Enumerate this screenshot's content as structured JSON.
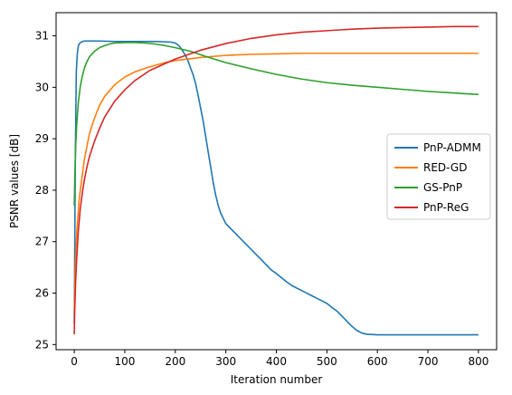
{
  "chart_data": {
    "type": "line",
    "title": "",
    "xlabel": "Iteration number",
    "ylabel": "PSNR values [dB]",
    "xlim": [
      -36,
      836
    ],
    "ylim": [
      24.9,
      31.45
    ],
    "xticks": [
      0,
      100,
      200,
      300,
      400,
      500,
      600,
      700,
      800
    ],
    "yticks": [
      25,
      26,
      27,
      28,
      29,
      30,
      31
    ],
    "grid": false,
    "legend_position": "center-right",
    "series": [
      {
        "name": "PnP-ADMM",
        "color": "#1f77b4",
        "x": [
          0,
          2,
          4,
          6,
          8,
          10,
          14,
          20,
          30,
          50,
          80,
          120,
          160,
          190,
          200,
          208,
          215,
          220,
          225,
          230,
          235,
          240,
          245,
          250,
          255,
          260,
          265,
          270,
          275,
          280,
          285,
          290,
          295,
          300,
          305,
          310,
          315,
          320,
          330,
          340,
          350,
          360,
          370,
          380,
          390,
          400,
          410,
          420,
          430,
          440,
          450,
          460,
          470,
          480,
          490,
          500,
          510,
          520,
          530,
          540,
          550,
          560,
          570,
          580,
          600,
          650,
          700,
          750,
          800
        ],
        "y": [
          25.4,
          28.5,
          30.3,
          30.65,
          30.8,
          30.85,
          30.88,
          30.9,
          30.9,
          30.9,
          30.89,
          30.89,
          30.89,
          30.88,
          30.86,
          30.8,
          30.7,
          30.62,
          30.52,
          30.38,
          30.25,
          30.08,
          29.85,
          29.6,
          29.35,
          29.05,
          28.75,
          28.45,
          28.15,
          27.9,
          27.7,
          27.55,
          27.45,
          27.35,
          27.3,
          27.25,
          27.2,
          27.15,
          27.05,
          26.95,
          26.85,
          26.75,
          26.65,
          26.55,
          26.45,
          26.38,
          26.3,
          26.22,
          26.15,
          26.1,
          26.05,
          26.0,
          25.95,
          25.9,
          25.85,
          25.8,
          25.72,
          25.65,
          25.55,
          25.45,
          25.35,
          25.27,
          25.22,
          25.2,
          25.19,
          25.19,
          25.19,
          25.19,
          25.19
        ]
      },
      {
        "name": "RED-GD",
        "color": "#ff7f0e",
        "x": [
          0,
          2,
          5,
          10,
          20,
          30,
          40,
          50,
          60,
          80,
          100,
          120,
          150,
          180,
          200,
          250,
          300,
          350,
          400,
          450,
          500,
          600,
          700,
          800
        ],
        "y": [
          25.6,
          26.5,
          27.2,
          27.85,
          28.6,
          29.1,
          29.4,
          29.65,
          29.82,
          30.05,
          30.2,
          30.3,
          30.4,
          30.48,
          30.52,
          30.58,
          30.62,
          30.64,
          30.65,
          30.66,
          30.66,
          30.66,
          30.66,
          30.66
        ]
      },
      {
        "name": "GS-PnP",
        "color": "#2ca02c",
        "x": [
          0,
          1,
          2,
          3,
          5,
          8,
          12,
          16,
          20,
          25,
          30,
          40,
          50,
          60,
          70,
          80,
          100,
          120,
          140,
          160,
          180,
          200,
          230,
          260,
          300,
          350,
          400,
          450,
          500,
          550,
          600,
          650,
          700,
          750,
          800
        ],
        "y": [
          27.7,
          28.2,
          28.6,
          28.9,
          29.3,
          29.7,
          30.02,
          30.22,
          30.37,
          30.5,
          30.59,
          30.7,
          30.77,
          30.81,
          30.84,
          30.86,
          30.87,
          30.87,
          30.86,
          30.84,
          30.81,
          30.77,
          30.7,
          30.6,
          30.48,
          30.36,
          30.25,
          30.16,
          30.09,
          30.04,
          30.0,
          29.96,
          29.92,
          29.89,
          29.86
        ]
      },
      {
        "name": "PnP-ReG",
        "color": "#d62728",
        "x": [
          0,
          1,
          2,
          3,
          5,
          8,
          12,
          16,
          20,
          25,
          30,
          40,
          50,
          60,
          80,
          100,
          120,
          150,
          200,
          250,
          300,
          350,
          400,
          450,
          500,
          550,
          600,
          650,
          700,
          750,
          800
        ],
        "y": [
          25.2,
          25.7,
          26.0,
          26.3,
          26.7,
          27.2,
          27.65,
          27.95,
          28.2,
          28.45,
          28.65,
          28.95,
          29.2,
          29.42,
          29.73,
          29.95,
          30.13,
          30.33,
          30.55,
          30.72,
          30.85,
          30.95,
          31.02,
          31.07,
          31.1,
          31.13,
          31.15,
          31.16,
          31.17,
          31.18,
          31.18
        ]
      }
    ]
  }
}
